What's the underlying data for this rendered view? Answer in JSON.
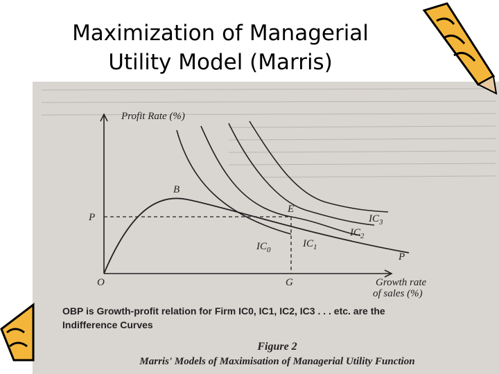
{
  "header": {
    "title_lines": [
      "Maximization of Managerial",
      "Utility Model (Marris)"
    ]
  },
  "figure": {
    "y_axis_label": "Profit Rate (%)",
    "x_axis_label_lines": [
      "Growth rate",
      "of sales (%)"
    ],
    "points": {
      "origin": "O",
      "peak": "B",
      "equilibrium": "E",
      "growth": "G",
      "profit_level": "P",
      "curve_end": "P"
    },
    "curves": [
      {
        "base": "IC",
        "sub": "0"
      },
      {
        "base": "IC",
        "sub": "1"
      },
      {
        "base": "IC",
        "sub": "2"
      },
      {
        "base": "IC",
        "sub": "3"
      }
    ],
    "caption_lines": [
      "OBP is Growth-profit relation for Firm IC0, IC1, IC2, IC3 . . . etc. are the",
      "Indifference Curves"
    ],
    "figure_number": "Figure 2",
    "figure_title": "Marris' Models of Maximisation of Managerial Utility Function"
  }
}
